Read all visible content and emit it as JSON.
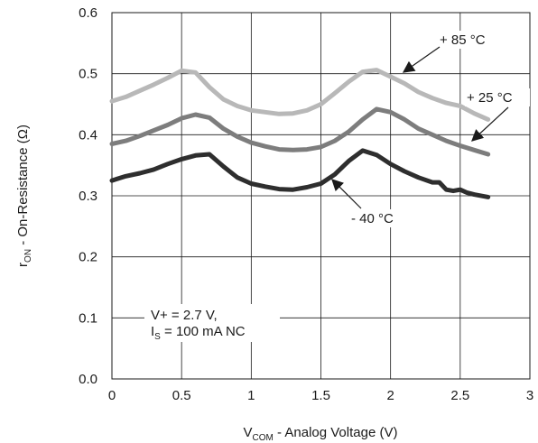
{
  "chart_data": {
    "type": "line",
    "xlabel": {
      "main": "V",
      "sub": "COM",
      "rest": " - Analog Voltage (V)"
    },
    "ylabel": {
      "main": "r",
      "sub": "ON",
      "rest": " - On-Resistance (Ω)"
    },
    "xlim": [
      0,
      3
    ],
    "ylim": [
      0,
      0.6
    ],
    "x_ticks": [
      "0",
      "0.5",
      "1",
      "1.5",
      "2",
      "2.5",
      "3"
    ],
    "y_ticks": [
      "0.0",
      "0.1",
      "0.2",
      "0.3",
      "0.4",
      "0.5",
      "0.6"
    ],
    "grid": true,
    "series": [
      {
        "name": "+ 85 °C",
        "color": "#b8b8b8",
        "x": [
          0,
          0.1,
          0.2,
          0.3,
          0.4,
          0.5,
          0.6,
          0.7,
          0.8,
          0.9,
          1.0,
          1.1,
          1.2,
          1.3,
          1.4,
          1.5,
          1.6,
          1.7,
          1.8,
          1.9,
          2.0,
          2.1,
          2.2,
          2.3,
          2.4,
          2.5,
          2.6,
          2.7
        ],
        "y": [
          0.455,
          0.462,
          0.472,
          0.482,
          0.493,
          0.505,
          0.502,
          0.478,
          0.458,
          0.447,
          0.44,
          0.437,
          0.434,
          0.435,
          0.44,
          0.45,
          0.468,
          0.487,
          0.503,
          0.506,
          0.495,
          0.484,
          0.47,
          0.46,
          0.452,
          0.447,
          0.435,
          0.425
        ]
      },
      {
        "name": "+ 25 °C",
        "color": "#7d7d7d",
        "x": [
          0,
          0.1,
          0.2,
          0.3,
          0.4,
          0.5,
          0.6,
          0.7,
          0.8,
          0.9,
          1.0,
          1.1,
          1.2,
          1.3,
          1.4,
          1.5,
          1.6,
          1.7,
          1.8,
          1.9,
          2.0,
          2.1,
          2.2,
          2.3,
          2.4,
          2.5,
          2.6,
          2.7
        ],
        "y": [
          0.385,
          0.39,
          0.398,
          0.407,
          0.416,
          0.427,
          0.433,
          0.428,
          0.41,
          0.397,
          0.387,
          0.381,
          0.376,
          0.375,
          0.376,
          0.38,
          0.39,
          0.405,
          0.425,
          0.442,
          0.437,
          0.425,
          0.41,
          0.4,
          0.39,
          0.382,
          0.375,
          0.368
        ]
      },
      {
        "name": "- 40 °C",
        "color": "#2e2e2e",
        "x": [
          0,
          0.1,
          0.2,
          0.3,
          0.4,
          0.5,
          0.6,
          0.7,
          0.8,
          0.9,
          1.0,
          1.1,
          1.2,
          1.3,
          1.4,
          1.5,
          1.6,
          1.7,
          1.8,
          1.9,
          2.0,
          2.1,
          2.2,
          2.3,
          2.35,
          2.4,
          2.45,
          2.5,
          2.55,
          2.6,
          2.7
        ],
        "y": [
          0.325,
          0.332,
          0.337,
          0.343,
          0.352,
          0.36,
          0.366,
          0.368,
          0.348,
          0.33,
          0.32,
          0.315,
          0.311,
          0.31,
          0.314,
          0.32,
          0.335,
          0.357,
          0.374,
          0.367,
          0.352,
          0.34,
          0.33,
          0.322,
          0.322,
          0.31,
          0.308,
          0.31,
          0.305,
          0.302,
          0.298
        ]
      }
    ],
    "annotations": {
      "t85": "+ 85 °C",
      "t25": "+ 25 °C",
      "tm40": "- 40 °C",
      "cond1": "V+ = 2.7 V,",
      "cond2_main": "I",
      "cond2_sub": "S",
      "cond2_rest": " = 100 mA NC"
    }
  }
}
